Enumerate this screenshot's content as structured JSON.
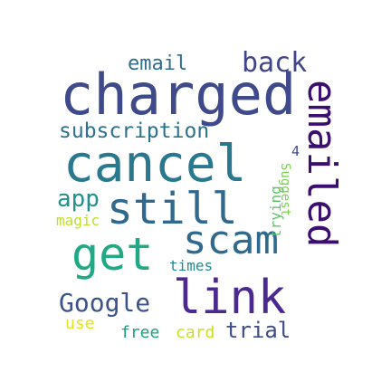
{
  "words": [
    {
      "text": "charged",
      "color": "#3f4a8a"
    },
    {
      "text": "emailed",
      "color": "#3b0f70"
    },
    {
      "text": "cancel",
      "color": "#2a788e"
    },
    {
      "text": "still",
      "color": "#31688e"
    },
    {
      "text": "get",
      "color": "#22a884"
    },
    {
      "text": "scam",
      "color": "#30698e"
    },
    {
      "text": "link",
      "color": "#4b2991"
    },
    {
      "text": "back",
      "color": "#414487"
    },
    {
      "text": "email",
      "color": "#2f6c8e"
    },
    {
      "text": "subscription",
      "color": "#2c728e"
    },
    {
      "text": "Google",
      "color": "#3b528b"
    },
    {
      "text": "app",
      "color": "#21918c"
    },
    {
      "text": "magic",
      "color": "#bddf26"
    },
    {
      "text": "times",
      "color": "#23898e"
    },
    {
      "text": "use",
      "color": "#e3e419"
    },
    {
      "text": "free",
      "color": "#1fa187"
    },
    {
      "text": "card",
      "color": "#c8e020"
    },
    {
      "text": "trial",
      "color": "#3e4c8a"
    },
    {
      "text": "trying",
      "color": "#5ac864"
    },
    {
      "text": "Suggest",
      "color": "#7ad151"
    },
    {
      "text": "4",
      "color": "#3f4889"
    }
  ]
}
